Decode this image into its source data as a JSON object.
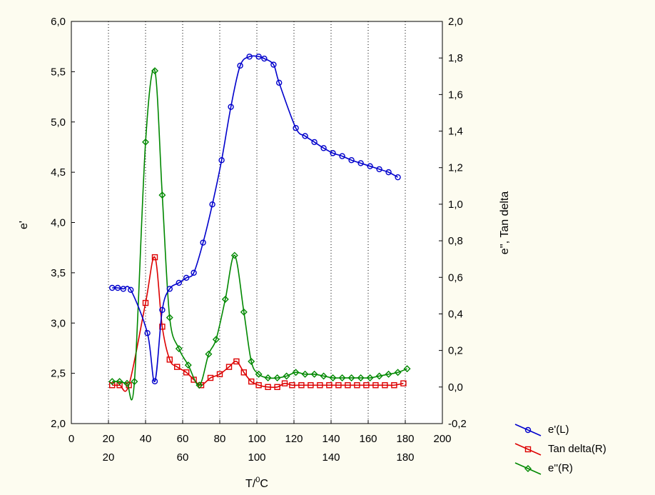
{
  "chart_data": {
    "type": "line",
    "xlabel": "T/",
    "xlabel_sup": "0",
    "xlabel_suffix": "C",
    "ylabel_left": "e'",
    "ylabel_right": "e'', Tan delta",
    "x_ticks_primary": [
      "0",
      "20",
      "40",
      "60",
      "80",
      "100",
      "120",
      "140",
      "160",
      "180",
      "200"
    ],
    "x_ticks_secondary": [
      "20",
      "60",
      "100",
      "140",
      "180"
    ],
    "y_left_ticks": [
      "2,0",
      "2,5",
      "3,0",
      "3,5",
      "4,0",
      "4,5",
      "5,0",
      "5,5",
      "6,0"
    ],
    "y_right_ticks": [
      "-0,2",
      "0,0",
      "0,2",
      "0,4",
      "0,6",
      "0,8",
      "1,0",
      "1,2",
      "1,4",
      "1,6",
      "1,8",
      "2,0"
    ],
    "xlim": [
      0,
      200
    ],
    "ylim_left": [
      2.0,
      6.0
    ],
    "ylim_right": [
      -0.2,
      2.0
    ],
    "grid": "vertical dotted",
    "legend_position": "bottom-right outside",
    "series": [
      {
        "name": "e'(L)",
        "axis": "left",
        "color": "#0000cc",
        "marker": "circle",
        "x": [
          22,
          25,
          28,
          32,
          41,
          45,
          49,
          53,
          58,
          62,
          66,
          71,
          76,
          81,
          86,
          91,
          96,
          101,
          104,
          109,
          112,
          121,
          126,
          131,
          136,
          141,
          146,
          151,
          156,
          161,
          166,
          171,
          176
        ],
        "y": [
          3.35,
          3.35,
          3.34,
          3.33,
          2.9,
          2.42,
          3.13,
          3.34,
          3.4,
          3.45,
          3.5,
          3.8,
          4.18,
          4.62,
          5.15,
          5.56,
          5.65,
          5.65,
          5.63,
          5.57,
          5.39,
          4.94,
          4.86,
          4.8,
          4.74,
          4.69,
          4.66,
          4.62,
          4.59,
          4.56,
          4.53,
          4.5,
          4.45
        ]
      },
      {
        "name": "Tan delta(R)",
        "axis": "right",
        "color": "#dd0000",
        "marker": "square",
        "x": [
          22,
          26,
          31,
          40,
          45,
          49,
          53,
          57,
          62,
          66,
          70,
          75,
          80,
          85,
          89,
          93,
          97,
          101,
          106,
          111,
          115,
          119,
          124,
          129,
          134,
          139,
          144,
          149,
          154,
          159,
          164,
          169,
          174,
          179
        ],
        "y": [
          0.01,
          0.01,
          0.01,
          0.46,
          0.71,
          0.33,
          0.15,
          0.11,
          0.08,
          0.04,
          0.01,
          0.05,
          0.07,
          0.11,
          0.14,
          0.08,
          0.03,
          0.01,
          0.0,
          0.0,
          0.02,
          0.01,
          0.01,
          0.01,
          0.01,
          0.01,
          0.01,
          0.01,
          0.01,
          0.01,
          0.01,
          0.01,
          0.01,
          0.02
        ]
      },
      {
        "name": "e''(R)",
        "axis": "right",
        "color": "#008800",
        "marker": "diamond",
        "x": [
          22,
          26,
          30,
          34,
          40,
          45,
          49,
          53,
          58,
          63,
          69,
          74,
          78,
          83,
          88,
          93,
          97,
          101,
          106,
          111,
          116,
          121,
          126,
          131,
          136,
          141,
          146,
          151,
          156,
          161,
          166,
          171,
          176,
          181
        ],
        "y": [
          0.03,
          0.03,
          0.02,
          0.03,
          1.34,
          1.73,
          1.05,
          0.38,
          0.21,
          0.12,
          0.01,
          0.18,
          0.26,
          0.48,
          0.72,
          0.41,
          0.14,
          0.07,
          0.05,
          0.05,
          0.06,
          0.08,
          0.07,
          0.07,
          0.06,
          0.05,
          0.05,
          0.05,
          0.05,
          0.05,
          0.06,
          0.07,
          0.08,
          0.1
        ]
      }
    ]
  }
}
